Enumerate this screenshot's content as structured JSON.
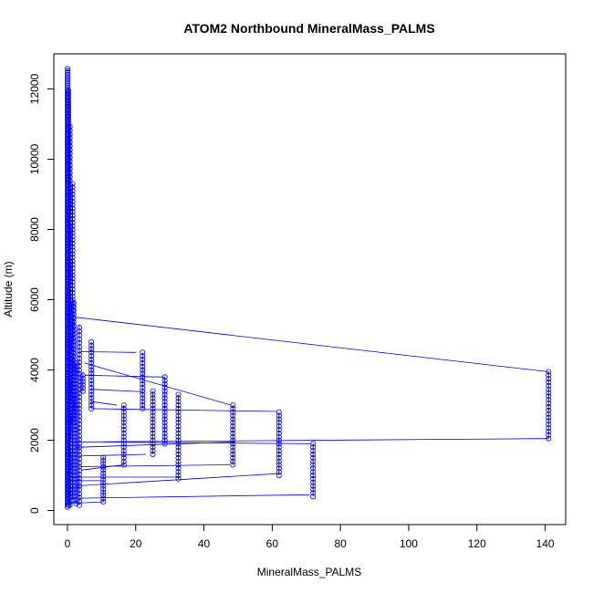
{
  "chart_data": {
    "type": "scatter",
    "title": "ATOM2 Northbound MineralMass_PALMS",
    "xlabel": "MineralMass_PALMS",
    "ylabel": "Altitude (m)",
    "xlim": [
      -4,
      146
    ],
    "ylim": [
      -400,
      13000
    ],
    "x_ticks": [
      0,
      20,
      40,
      60,
      80,
      100,
      120,
      140
    ],
    "y_ticks": [
      0,
      2000,
      4000,
      6000,
      8000,
      10000,
      12000
    ],
    "series_color": "#0000ff",
    "marker": "open-circle",
    "connected": true,
    "grid": false,
    "legend": "none",
    "columns": [
      {
        "x": 0.0,
        "y_min": 100,
        "y_max": 12600,
        "step": 60
      },
      {
        "x": 0.3,
        "y_min": 150,
        "y_max": 12000,
        "step": 90
      },
      {
        "x": 0.7,
        "y_min": 150,
        "y_max": 11000,
        "step": 110
      },
      {
        "x": 1.5,
        "y_min": 300,
        "y_max": 9300,
        "step": 100
      },
      {
        "x": 1.8,
        "y_min": 2500,
        "y_max": 6000,
        "step": 110
      },
      {
        "x": 2.5,
        "y_min": 200,
        "y_max": 4200,
        "step": 100
      },
      {
        "x": 3.5,
        "y_min": 150,
        "y_max": 5300,
        "step": 110
      },
      {
        "x": 4.5,
        "y_min": 3400,
        "y_max": 3900,
        "step": 90
      },
      {
        "x": 7.0,
        "y_min": 2900,
        "y_max": 4800,
        "step": 100
      },
      {
        "x": 10.5,
        "y_min": 250,
        "y_max": 1550,
        "step": 90
      },
      {
        "x": 16.5,
        "y_min": 1300,
        "y_max": 3000,
        "step": 100
      },
      {
        "x": 22.0,
        "y_min": 2900,
        "y_max": 4500,
        "step": 100
      },
      {
        "x": 25.0,
        "y_min": 1600,
        "y_max": 3400,
        "step": 100
      },
      {
        "x": 28.5,
        "y_min": 1900,
        "y_max": 3800,
        "step": 100
      },
      {
        "x": 32.5,
        "y_min": 900,
        "y_max": 3300,
        "step": 100
      },
      {
        "x": 48.5,
        "y_min": 1300,
        "y_max": 3000,
        "step": 100
      },
      {
        "x": 62.0,
        "y_min": 1000,
        "y_max": 2800,
        "step": 100
      },
      {
        "x": 72.0,
        "y_min": 400,
        "y_max": 1900,
        "step": 100
      },
      {
        "x": 141.0,
        "y_min": 2050,
        "y_max": 3950,
        "step": 100
      }
    ],
    "jump_segments": [
      [
        [
          2.5,
          5500
        ],
        [
          141.0,
          3950
        ]
      ],
      [
        [
          141.0,
          2050
        ],
        [
          2.5,
          1950
        ]
      ],
      [
        [
          3.5,
          4520
        ],
        [
          20.0,
          4500
        ]
      ],
      [
        [
          5.0,
          4200
        ],
        [
          48.0,
          3000
        ]
      ],
      [
        [
          5.0,
          3850
        ],
        [
          28.5,
          3800
        ]
      ],
      [
        [
          7.0,
          3450
        ],
        [
          22.0,
          3380
        ]
      ],
      [
        [
          7.0,
          3100
        ],
        [
          14.5,
          3000
        ]
      ],
      [
        [
          7.0,
          2900
        ],
        [
          61.5,
          2820
        ]
      ],
      [
        [
          10.5,
          1950
        ],
        [
          71.5,
          1900
        ]
      ],
      [
        [
          2.5,
          1800
        ],
        [
          48.5,
          1950
        ]
      ],
      [
        [
          3.5,
          1550
        ],
        [
          23.0,
          1600
        ]
      ],
      [
        [
          3.5,
          1250
        ],
        [
          47.5,
          1300
        ]
      ],
      [
        [
          4.0,
          1150
        ],
        [
          16.5,
          1300
        ]
      ],
      [
        [
          2.5,
          950
        ],
        [
          32.5,
          950
        ]
      ],
      [
        [
          3.5,
          850
        ],
        [
          10.0,
          850
        ]
      ],
      [
        [
          2.5,
          700
        ],
        [
          61.5,
          1050
        ]
      ],
      [
        [
          3.5,
          350
        ],
        [
          71.0,
          450
        ]
      ],
      [
        [
          0.5,
          200
        ],
        [
          10.5,
          250
        ]
      ]
    ]
  }
}
